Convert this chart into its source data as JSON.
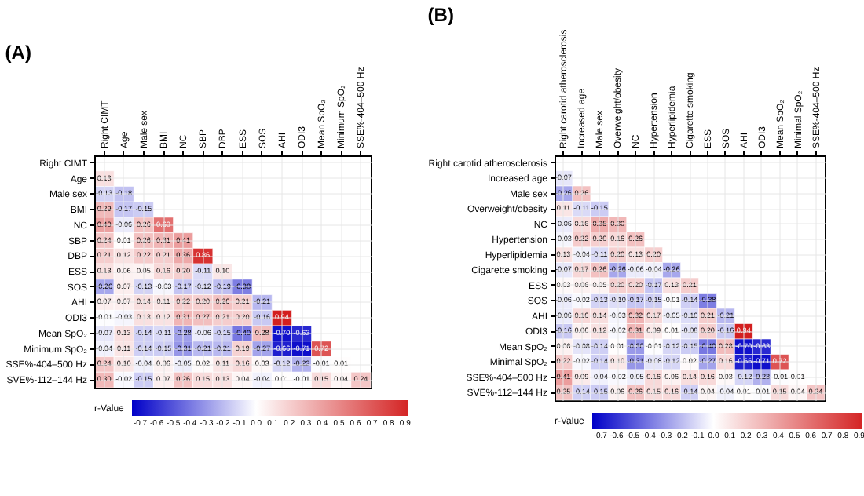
{
  "chart_data": [
    {
      "type": "heatmap",
      "title": "(A)",
      "clabel": "r-Value",
      "data_labels": true,
      "grid": true,
      "clim": [
        -0.75,
        0.92
      ],
      "cticks": [
        -0.7,
        -0.6,
        -0.5,
        -0.4,
        -0.3,
        -0.2,
        -0.1,
        {
          "value": 0,
          "label": "0.0"
        },
        0.1,
        0.2,
        0.3,
        0.4,
        0.5,
        0.6,
        0.7,
        0.8,
        0.9
      ],
      "categories": [
        "Right CIMT",
        "Age",
        "Male sex",
        "BMI",
        "NC",
        "SBP",
        "DBP",
        "ESS",
        "SOS",
        "AHI",
        "ODI3",
        "Mean SpO₂",
        "Minimum SpO₂",
        "SSE%-404–500 Hz"
      ],
      "y_categories": [
        "Right CIMT",
        "Age",
        "Male sex",
        "BMI",
        "NC",
        "SBP",
        "DBP",
        "ESS",
        "SOS",
        "AHI",
        "ODI3",
        "Mean SpO₂",
        "Minimum SpO₂",
        "SSE%-404–500 Hz",
        "SVE%-112–144 Hz"
      ],
      "cell_labels": [
        [
          null,
          null,
          null,
          null,
          null,
          null,
          null,
          null,
          null,
          null,
          null,
          null,
          null,
          null
        ],
        [
          "0.13",
          null,
          null,
          null,
          null,
          null,
          null,
          null,
          null,
          null,
          null,
          null,
          null,
          null
        ],
        [
          "-0.13",
          "-0.18",
          null,
          null,
          null,
          null,
          null,
          null,
          null,
          null,
          null,
          null,
          null,
          null
        ],
        [
          "0.29",
          "-0.17",
          "-0.15",
          null,
          null,
          null,
          null,
          null,
          null,
          null,
          null,
          null,
          null,
          null
        ],
        [
          "0.40",
          "-0.06",
          "0.26",
          "0.60",
          null,
          null,
          null,
          null,
          null,
          null,
          null,
          null,
          null,
          null
        ],
        [
          "0.24",
          "0.01",
          "0.26",
          "0.31",
          "0.41",
          null,
          null,
          null,
          null,
          null,
          null,
          null,
          null,
          null
        ],
        [
          "0.21",
          "0.12",
          "0.22",
          "0.21",
          "0.36",
          "0.86",
          null,
          null,
          null,
          null,
          null,
          null,
          null,
          null
        ],
        [
          "0.13",
          "0.06",
          "0.05",
          "0.16",
          "0.20",
          "-0.11",
          "0.10",
          null,
          null,
          null,
          null,
          null,
          null,
          null
        ],
        [
          "-0.26",
          "0.07",
          "-0.13",
          "-0.03",
          "-0.17",
          "-0.12",
          "-0.19",
          "-0.38",
          null,
          null,
          null,
          null,
          null,
          null
        ],
        [
          "0.07",
          "0.07",
          "0.14",
          "0.11",
          "0.22",
          "0.20",
          "0.26",
          "0.21",
          "-0.21",
          null,
          null,
          null,
          null,
          null
        ],
        [
          "-0.01",
          "-0.03",
          "0.13",
          "0.12",
          "0.31",
          "0.27",
          "0.21",
          "0.20",
          "-0.16",
          "0.94",
          null,
          null,
          null,
          null
        ],
        [
          "-0.07",
          "0.13",
          "-0.14",
          "-0.11",
          "-0.28",
          "-0.06",
          "-0.15",
          "-0.40",
          "0.28",
          "-0.70",
          "-0.63",
          null,
          null,
          null
        ],
        [
          "-0.04",
          "0.11",
          "-0.14",
          "-0.15",
          "-0.31",
          "-0.21",
          "-0.21",
          "0.19",
          "-0.27",
          "-0.66",
          "-0.71",
          "0.72",
          null,
          null
        ],
        [
          "0.24",
          "0.10",
          "-0.04",
          "0.06",
          "-0.05",
          "0.02",
          "0.11",
          "0.16",
          "0.03",
          "-0.12",
          "-0.23",
          "-0.01",
          "0.01",
          null
        ],
        [
          "0.30",
          "-0.02",
          "-0.15",
          "0.07",
          "0.26",
          "0.15",
          "0.13",
          "0.04",
          "-0.04",
          "0.01",
          "-0.01",
          "0.15",
          "0.04",
          "0.24"
        ]
      ],
      "cells": [
        [
          null,
          null,
          null,
          null,
          null,
          null,
          null,
          null,
          null,
          null,
          null,
          null,
          null,
          null
        ],
        [
          0.13,
          null,
          null,
          null,
          null,
          null,
          null,
          null,
          null,
          null,
          null,
          null,
          null,
          null
        ],
        [
          -0.13,
          -0.18,
          null,
          null,
          null,
          null,
          null,
          null,
          null,
          null,
          null,
          null,
          null,
          null
        ],
        [
          0.29,
          -0.17,
          -0.15,
          null,
          null,
          null,
          null,
          null,
          null,
          null,
          null,
          null,
          null,
          null
        ],
        [
          0.4,
          -0.06,
          0.26,
          0.6,
          null,
          null,
          null,
          null,
          null,
          null,
          null,
          null,
          null,
          null
        ],
        [
          0.24,
          0.01,
          0.26,
          0.31,
          0.41,
          null,
          null,
          null,
          null,
          null,
          null,
          null,
          null,
          null
        ],
        [
          0.21,
          0.12,
          0.22,
          0.21,
          0.36,
          0.86,
          null,
          null,
          null,
          null,
          null,
          null,
          null,
          null
        ],
        [
          0.13,
          0.06,
          0.05,
          0.16,
          0.2,
          -0.11,
          0.1,
          null,
          null,
          null,
          null,
          null,
          null,
          null
        ],
        [
          -0.26,
          0.07,
          -0.13,
          -0.03,
          -0.17,
          -0.12,
          -0.19,
          -0.38,
          null,
          null,
          null,
          null,
          null,
          null
        ],
        [
          0.07,
          0.07,
          0.14,
          0.11,
          0.22,
          0.2,
          0.26,
          0.21,
          -0.21,
          null,
          null,
          null,
          null,
          null
        ],
        [
          -0.01,
          -0.03,
          0.13,
          0.12,
          0.31,
          0.27,
          0.21,
          0.2,
          -0.16,
          0.94,
          null,
          null,
          null,
          null
        ],
        [
          -0.07,
          0.13,
          -0.14,
          -0.11,
          -0.28,
          -0.06,
          -0.15,
          -0.4,
          0.28,
          -0.7,
          -0.63,
          null,
          null,
          null
        ],
        [
          -0.04,
          0.11,
          -0.14,
          -0.15,
          -0.31,
          -0.21,
          -0.21,
          0.19,
          -0.27,
          -0.66,
          -0.71,
          0.72,
          null,
          null
        ],
        [
          0.24,
          0.1,
          -0.04,
          0.06,
          -0.05,
          0.02,
          0.11,
          0.16,
          0.03,
          -0.12,
          -0.23,
          -0.01,
          0.01,
          null
        ],
        [
          0.3,
          -0.02,
          -0.15,
          0.07,
          0.26,
          0.15,
          0.13,
          0.04,
          -0.04,
          0.01,
          -0.01,
          0.15,
          0.04,
          0.24
        ]
      ]
    },
    {
      "type": "heatmap",
      "title": "(B)",
      "clabel": "r-Value",
      "data_labels": true,
      "grid": true,
      "clim": [
        -0.75,
        0.92
      ],
      "cticks": [
        -0.7,
        -0.6,
        -0.5,
        -0.4,
        -0.3,
        -0.2,
        -0.1,
        {
          "value": 0,
          "label": "0.0"
        },
        0.1,
        0.2,
        0.3,
        0.4,
        0.5,
        0.6,
        0.7,
        0.8,
        0.9
      ],
      "categories": [
        "Right carotid atherosclerosis",
        "Increased age",
        "Male sex",
        "Overweight/obesity",
        "NC",
        "Hypertension",
        "Hyperlipidemia",
        "Cigarette smoking",
        "ESS",
        "SOS",
        "AHI",
        "ODI3",
        "Mean SpO₂",
        "Minimal SpO₂",
        "SSE%-404–500 Hz"
      ],
      "y_categories": [
        "Right carotid atherosclerosis",
        "Increased age",
        "Male sex",
        "Overweight/obesity",
        "NC",
        "Hypertension",
        "Hyperlipidemia",
        "Cigarette smoking",
        "ESS",
        "SOS",
        "AHI",
        "ODI3",
        "Mean SpO₂",
        "Minimal SpO₂",
        "SSE%-404–500 Hz",
        "SVE%-112–144 Hz"
      ],
      "cell_labels": [
        [
          null,
          null,
          null,
          null,
          null,
          null,
          null,
          null,
          null,
          null,
          null,
          null,
          null,
          null,
          null
        ],
        [
          "-0.07",
          null,
          null,
          null,
          null,
          null,
          null,
          null,
          null,
          null,
          null,
          null,
          null,
          null,
          null
        ],
        [
          "-0.26",
          "0.26",
          null,
          null,
          null,
          null,
          null,
          null,
          null,
          null,
          null,
          null,
          null,
          null,
          null
        ],
        [
          "0.11",
          "-0.11",
          "-0.15",
          null,
          null,
          null,
          null,
          null,
          null,
          null,
          null,
          null,
          null,
          null,
          null
        ],
        [
          "-0.06",
          "0.16",
          "0.35",
          "0.30",
          null,
          null,
          null,
          null,
          null,
          null,
          null,
          null,
          null,
          null,
          null
        ],
        [
          "-0.03",
          "0.22",
          "0.20",
          "0.16",
          "0.26",
          null,
          null,
          null,
          null,
          null,
          null,
          null,
          null,
          null,
          null
        ],
        [
          "0.13",
          "-0.04",
          "-0.11",
          "0.20",
          "0.13",
          "0.20",
          null,
          null,
          null,
          null,
          null,
          null,
          null,
          null,
          null
        ],
        [
          "-0.07",
          "0.17",
          "0.26",
          "-0.26",
          "-0.06",
          "-0.04",
          "-0.26",
          null,
          null,
          null,
          null,
          null,
          null,
          null,
          null
        ],
        [
          "0.03",
          "0.06",
          "0.05",
          "0.20",
          "0.20",
          "-0.17",
          "0.13",
          "0.21",
          null,
          null,
          null,
          null,
          null,
          null,
          null
        ],
        [
          "-0.06",
          "-0.02",
          "-0.13",
          "-0.10",
          "-0.17",
          "-0.15",
          "-0.01",
          "-0.14",
          "-0.38",
          null,
          null,
          null,
          null,
          null,
          null
        ],
        [
          "-0.06",
          "0.16",
          "0.14",
          "-0.03",
          "0.32",
          "0.17",
          "-0.05",
          "-0.10",
          "0.21",
          "-0.21",
          null,
          null,
          null,
          null,
          null
        ],
        [
          "-0.16",
          "0.06",
          "0.12",
          "-0.02",
          "0.31",
          "0.09",
          "0.01",
          "-0.08",
          "0.20",
          "-0.16",
          "0.94",
          null,
          null,
          null,
          null
        ],
        [
          "0.06",
          "-0.08",
          "-0.14",
          "0.01",
          "-0.30",
          "-0.01",
          "-0.12",
          "-0.15",
          "-0.40",
          "0.28",
          "-0.70",
          "-0.63",
          null,
          null,
          null
        ],
        [
          "0.22",
          "-0.02",
          "-0.14",
          "0.10",
          "-0.31",
          "-0.08",
          "-0.12",
          "0.02",
          "-0.27",
          "0.16",
          "-0.66",
          "-0.71",
          "0.72",
          null,
          null
        ],
        [
          "0.41",
          "0.09",
          "-0.04",
          "-0.02",
          "-0.05",
          "0.16",
          "0.06",
          "0.14",
          "0.16",
          "0.03",
          "-0.12",
          "-0.23",
          "-0.01",
          "0.01",
          null
        ],
        [
          "0.25",
          "-0.14",
          "-0.15",
          "0.06",
          "0.26",
          "0.15",
          "0.16",
          "-0.14",
          "0.04",
          "-0.04",
          "0.01",
          "-0.01",
          "0.15",
          "0.04",
          "0.24"
        ]
      ],
      "cells": [
        [
          null,
          null,
          null,
          null,
          null,
          null,
          null,
          null,
          null,
          null,
          null,
          null,
          null,
          null,
          null
        ],
        [
          -0.07,
          null,
          null,
          null,
          null,
          null,
          null,
          null,
          null,
          null,
          null,
          null,
          null,
          null,
          null
        ],
        [
          -0.26,
          0.26,
          null,
          null,
          null,
          null,
          null,
          null,
          null,
          null,
          null,
          null,
          null,
          null,
          null
        ],
        [
          0.11,
          -0.11,
          -0.15,
          null,
          null,
          null,
          null,
          null,
          null,
          null,
          null,
          null,
          null,
          null,
          null
        ],
        [
          -0.06,
          0.16,
          0.35,
          0.3,
          null,
          null,
          null,
          null,
          null,
          null,
          null,
          null,
          null,
          null,
          null
        ],
        [
          -0.03,
          0.22,
          0.2,
          0.16,
          0.26,
          null,
          null,
          null,
          null,
          null,
          null,
          null,
          null,
          null,
          null
        ],
        [
          0.13,
          -0.04,
          -0.11,
          0.2,
          0.13,
          0.2,
          null,
          null,
          null,
          null,
          null,
          null,
          null,
          null,
          null
        ],
        [
          -0.07,
          0.17,
          0.26,
          -0.26,
          -0.06,
          -0.04,
          -0.26,
          null,
          null,
          null,
          null,
          null,
          null,
          null,
          null
        ],
        [
          0.03,
          0.06,
          0.05,
          0.2,
          0.2,
          -0.17,
          0.13,
          0.21,
          null,
          null,
          null,
          null,
          null,
          null,
          null
        ],
        [
          -0.06,
          -0.02,
          -0.13,
          -0.1,
          -0.17,
          -0.15,
          -0.01,
          -0.14,
          -0.38,
          null,
          null,
          null,
          null,
          null,
          null
        ],
        [
          -0.06,
          0.16,
          0.14,
          -0.03,
          0.32,
          0.17,
          -0.05,
          -0.1,
          0.21,
          -0.21,
          null,
          null,
          null,
          null,
          null
        ],
        [
          -0.16,
          0.06,
          0.12,
          -0.02,
          0.31,
          0.09,
          0.01,
          -0.08,
          0.2,
          -0.16,
          0.94,
          null,
          null,
          null,
          null
        ],
        [
          0.06,
          -0.08,
          -0.14,
          0.01,
          -0.3,
          -0.01,
          -0.12,
          -0.15,
          -0.4,
          0.28,
          -0.7,
          -0.63,
          null,
          null,
          null
        ],
        [
          0.22,
          -0.02,
          -0.14,
          0.1,
          -0.31,
          -0.08,
          -0.12,
          0.02,
          -0.27,
          0.16,
          -0.66,
          -0.71,
          0.72,
          null,
          null
        ],
        [
          0.41,
          0.09,
          -0.04,
          -0.02,
          -0.05,
          0.16,
          0.06,
          0.14,
          0.16,
          0.03,
          -0.12,
          -0.23,
          -0.01,
          0.01,
          null
        ],
        [
          0.25,
          -0.14,
          -0.15,
          0.06,
          0.26,
          0.15,
          0.16,
          -0.14,
          0.04,
          -0.04,
          0.01,
          -0.01,
          0.15,
          0.04,
          0.24
        ]
      ]
    }
  ]
}
